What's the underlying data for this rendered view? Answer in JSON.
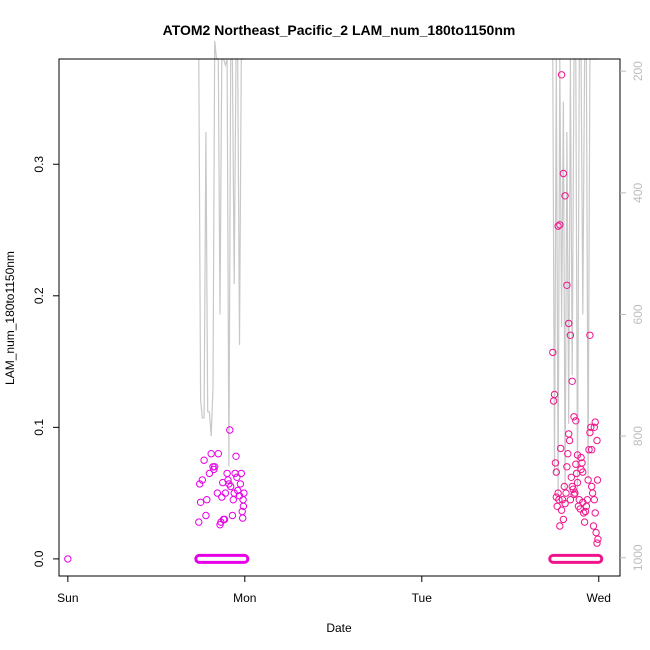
{
  "chart_data": {
    "type": "scatter",
    "title": "ATOM2 Northeast_Pacific_2 LAM_num_180to1150nm",
    "xlabel": "Date",
    "ylabel": "LAM_num_180to1150nm",
    "xlim": [
      -0.05,
      3.12
    ],
    "ylim": [
      -0.013,
      0.38
    ],
    "x_ticks": [
      {
        "value": 0,
        "label": "Sun"
      },
      {
        "value": 1,
        "label": "Mon"
      },
      {
        "value": 2,
        "label": "Tue"
      },
      {
        "value": 3,
        "label": "Wed"
      }
    ],
    "y_ticks": [
      {
        "value": 0,
        "label": "0.0"
      },
      {
        "value": 0.1,
        "label": "0.1"
      },
      {
        "value": 0.2,
        "label": "0.2"
      },
      {
        "value": 0.3,
        "label": "0.3"
      }
    ],
    "y2_ticks": [
      {
        "value": 200,
        "label": "200"
      },
      {
        "value": 400,
        "label": "400"
      },
      {
        "value": 600,
        "label": "600"
      },
      {
        "value": 800,
        "label": "800"
      },
      {
        "value": 1000,
        "label": "1000"
      }
    ],
    "y2lim": [
      1030,
      180
    ],
    "y2_reversed": true,
    "grid": false,
    "colors": {
      "points_day1": "#E600E6",
      "points_day3": "#F0148C",
      "altitude_line": "#c8c8c8",
      "axis": "#000000",
      "y2_axis": "#bdbdbd"
    },
    "series": [
      {
        "role": "points",
        "x": [
          0.0,
          0.74,
          0.745,
          0.75,
          0.76,
          0.77,
          0.78,
          0.785,
          0.8,
          0.81,
          0.82,
          0.825,
          0.83,
          0.845,
          0.85,
          0.86,
          0.865,
          0.87,
          0.875,
          0.88,
          0.885,
          0.89,
          0.9,
          0.905,
          0.91,
          0.915,
          0.92,
          0.93,
          0.935,
          0.94,
          0.945,
          0.95,
          0.955,
          0.96,
          0.97,
          0.975,
          0.98,
          0.985,
          0.99,
          0.995,
          0.992,
          0.988
        ],
        "y": [
          0.0,
          0.028,
          0.057,
          0.043,
          0.06,
          0.075,
          0.033,
          0.045,
          0.065,
          0.08,
          0.07,
          0.068,
          0.07,
          0.05,
          0.08,
          0.026,
          0.028,
          0.047,
          0.058,
          0.03,
          0.03,
          0.05,
          0.065,
          0.06,
          0.057,
          0.098,
          0.055,
          0.033,
          0.045,
          0.05,
          0.065,
          0.078,
          0.062,
          0.052,
          0.048,
          0.057,
          0.065,
          0.036,
          0.045,
          0.05,
          0.04,
          0.031
        ]
      },
      {
        "role": "points",
        "x": [
          2.74,
          2.745,
          2.75,
          2.755,
          2.76,
          2.765,
          2.77,
          2.775,
          2.78,
          2.785,
          2.79,
          2.795,
          2.8,
          2.805,
          2.81,
          2.815,
          2.82,
          2.825,
          2.83,
          2.835,
          2.84,
          2.845,
          2.85,
          2.855,
          2.86,
          2.865,
          2.87,
          2.875,
          2.88,
          2.885,
          2.89,
          2.895,
          2.9,
          2.905,
          2.91,
          2.915,
          2.92,
          2.925,
          2.93,
          2.935,
          2.94,
          2.945,
          2.95,
          2.955,
          2.96,
          2.965,
          2.97,
          2.975,
          2.98,
          2.985,
          2.99,
          2.995,
          2.79,
          2.8,
          2.81,
          2.77,
          2.78,
          2.82,
          2.83,
          2.84,
          2.85,
          2.86,
          2.87,
          2.88,
          2.9,
          2.91,
          2.76,
          2.95,
          2.96,
          2.975,
          2.98,
          2.99,
          2.993
        ],
        "y": [
          0.157,
          0.12,
          0.125,
          0.073,
          0.047,
          0.04,
          0.05,
          0.045,
          0.025,
          0.084,
          0.037,
          0.045,
          0.03,
          0.055,
          0.042,
          0.05,
          0.07,
          0.08,
          0.095,
          0.09,
          0.045,
          0.062,
          0.055,
          0.053,
          0.049,
          0.05,
          0.072,
          0.065,
          0.058,
          0.04,
          0.045,
          0.038,
          0.068,
          0.073,
          0.043,
          0.035,
          0.028,
          0.036,
          0.04,
          0.045,
          0.06,
          0.083,
          0.096,
          0.1,
          0.055,
          0.05,
          0.025,
          0.045,
          0.035,
          0.02,
          0.012,
          0.015,
          0.368,
          0.293,
          0.276,
          0.253,
          0.254,
          0.208,
          0.179,
          0.17,
          0.135,
          0.108,
          0.105,
          0.079,
          0.077,
          0.066,
          0.066,
          0.17,
          0.083,
          0.1,
          0.104,
          0.09,
          0.06
        ]
      },
      {
        "role": "line",
        "x": [
          0.74,
          0.75,
          0.76,
          0.77,
          0.78,
          0.79,
          0.8,
          0.81,
          0.82,
          0.83,
          0.84,
          0.85,
          0.86,
          0.87,
          0.88,
          0.89,
          0.9,
          0.91,
          0.92,
          0.93,
          0.94,
          0.95,
          0.96,
          0.97,
          0.98,
          0.99,
          1.0
        ],
        "y": [
          180,
          740,
          770,
          770,
          300,
          760,
          760,
          800,
          720,
          150,
          180,
          180,
          600,
          180,
          180,
          190,
          180,
          850,
          180,
          180,
          550,
          180,
          180,
          650,
          180,
          180,
          180
        ]
      },
      {
        "role": "line",
        "x": [
          2.74,
          2.75,
          2.76,
          2.77,
          2.78,
          2.79,
          2.8,
          2.81,
          2.82,
          2.83,
          2.84,
          2.85,
          2.86,
          2.87,
          2.88,
          2.89,
          2.9,
          2.91,
          2.92,
          2.93,
          2.94,
          2.95,
          2.96,
          2.97,
          2.98,
          2.99,
          3.0
        ],
        "y": [
          180,
          860,
          180,
          900,
          180,
          620,
          250,
          890,
          300,
          780,
          180,
          700,
          180,
          180,
          900,
          180,
          180,
          600,
          180,
          180,
          870,
          180,
          180,
          180,
          180,
          180,
          180
        ]
      }
    ],
    "baseline_strips": [
      {
        "x_from": 0.74,
        "x_to": 1.0,
        "y": 0.0
      },
      {
        "x_from": 2.74,
        "x_to": 3.0,
        "y": 0.0
      }
    ]
  }
}
